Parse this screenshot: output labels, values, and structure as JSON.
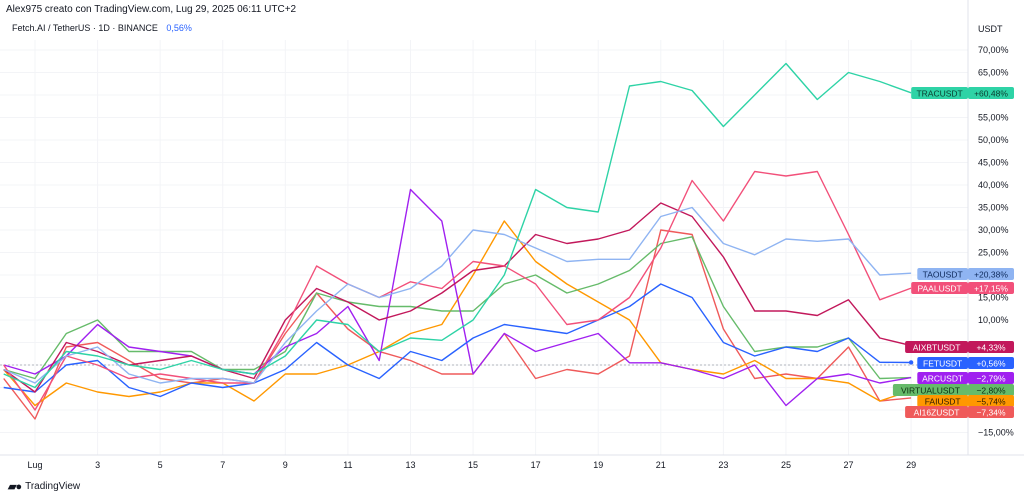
{
  "header": {
    "attribution": "Alex975 creato con TradingView.com, Lug 29, 2025 06:11 UTC+2",
    "symbol": "Fetch.AI / TetherUS · 1D · BINANCE",
    "change": "0,56%"
  },
  "footer": {
    "brand": "TradingView",
    "logo": "17"
  },
  "chart_data": {
    "type": "line",
    "title": "Fetch.AI / TetherUS · 1D · BINANCE",
    "ylabel": "USDT",
    "ylim": [
      -20,
      75
    ],
    "y_ticks": [
      -15,
      10,
      15,
      20,
      25,
      30,
      35,
      40,
      45,
      50,
      55,
      65,
      70
    ],
    "y_tick_labels": [
      "−15,00%",
      "10,00%",
      "15,00%",
      "",
      "25,00%",
      "30,00%",
      "35,00%",
      "40,00%",
      "45,00%",
      "50,00%",
      "55,00%",
      "65,00%",
      "70,00%"
    ],
    "x_days": [
      0,
      1,
      2,
      3,
      4,
      5,
      6,
      7,
      8,
      9,
      10,
      11,
      12,
      13,
      14,
      15,
      16,
      17,
      18,
      19,
      20,
      21,
      22,
      23,
      24,
      25,
      26,
      27,
      28,
      29
    ],
    "x_ticks": [
      1,
      3,
      5,
      7,
      9,
      11,
      13,
      15,
      17,
      19,
      21,
      23,
      25,
      27,
      29
    ],
    "x_tick_labels": [
      "Lug",
      "3",
      "5",
      "7",
      "9",
      "11",
      "13",
      "15",
      "17",
      "19",
      "21",
      "23",
      "25",
      "27",
      "29"
    ],
    "grid": true,
    "series": [
      {
        "name": "TRACUSDT",
        "last": "+60,48%",
        "color": "#2ed3a6",
        "text": "#0b3d30",
        "values": [
          -2,
          -5,
          3,
          2,
          0,
          -1,
          1,
          -1,
          -2,
          2,
          10,
          9,
          3,
          6,
          5.5,
          10,
          20,
          39,
          35,
          34,
          62,
          63,
          61,
          53,
          60,
          67,
          59,
          65,
          63,
          60.5
        ]
      },
      {
        "name": "TAOUSDT",
        "last": "+20,38%",
        "color": "#8fb4f2",
        "text": "#0e2a5c",
        "values": [
          -1,
          -4,
          2,
          4,
          -2,
          -4,
          -3,
          -3,
          -4,
          5,
          12,
          18,
          15,
          17,
          22,
          30,
          29,
          26,
          23,
          23.5,
          23.5,
          33,
          35,
          27,
          24.5,
          28,
          27.5,
          28,
          20,
          20.4
        ]
      },
      {
        "name": "PAALUSDT",
        "last": "+17,15%",
        "color": "#f2507a",
        "text": "#ffffff",
        "values": [
          0,
          -10,
          2,
          0,
          -3,
          -2,
          -3,
          -4,
          -4,
          8,
          22,
          18,
          15,
          18.5,
          17,
          23,
          22,
          18,
          9,
          10,
          15,
          26,
          41,
          32,
          43,
          42,
          43,
          29,
          14.5,
          17.1
        ]
      },
      {
        "name": "AIXBTUSDT",
        "last": "+4,33%",
        "color": "#c2185b",
        "text": "#ffffff",
        "values": [
          -1,
          -6,
          5,
          3,
          0,
          1,
          2,
          -1,
          -3,
          10,
          17,
          14,
          10,
          12,
          16,
          21,
          22,
          29,
          27,
          28,
          30,
          36,
          33,
          24,
          12,
          12,
          11,
          14.5,
          6,
          4.3
        ]
      },
      {
        "name": "FETUSDT",
        "last": "+0,56%",
        "color": "#2962ff",
        "text": "#ffffff",
        "values": [
          -5,
          -6,
          0,
          1,
          -5,
          -7,
          -4,
          -5,
          -4,
          -1,
          5,
          0,
          -3,
          3,
          1,
          6,
          9,
          8,
          7,
          10,
          13,
          18,
          15,
          5,
          2,
          4,
          3,
          6,
          0.6,
          0.56
        ]
      },
      {
        "name": "ARCUSDT",
        "last": "−2,79%",
        "color": "#a020f0",
        "text": "#ffffff",
        "values": [
          0,
          -2,
          2,
          9,
          4,
          3,
          2,
          -1,
          -2,
          4,
          7,
          13,
          1,
          39,
          32,
          -2,
          7,
          3,
          5,
          7,
          0.5,
          0.5,
          -1,
          -3,
          0,
          -9,
          -3,
          -2,
          -4,
          -2.8
        ]
      },
      {
        "name": "VIRTUALUSDT",
        "last": "−2,80%",
        "color": "#66bb6a",
        "text": "#0d2e10",
        "values": [
          -1,
          -3,
          7,
          10,
          3,
          3,
          3,
          -1,
          -1,
          3,
          16,
          14,
          13,
          13,
          12,
          12,
          18,
          20,
          16,
          18,
          21,
          27,
          28.5,
          13,
          3,
          4,
          4,
          6,
          -3,
          -2.8
        ]
      },
      {
        "name": "FAIUSDT",
        "last": "−5,74%",
        "color": "#ff9800",
        "text": "#2b1a00",
        "values": [
          -1,
          -9,
          -4,
          -6,
          -7,
          -6,
          -4,
          -4,
          -8,
          -2,
          -2,
          0,
          3,
          7,
          9,
          20,
          32,
          23,
          18,
          14,
          10,
          0.5,
          -1,
          -2,
          1,
          -3,
          -3,
          -4,
          -8,
          -5.7
        ]
      },
      {
        "name": "AI16ZUSDT",
        "last": "−7,34%",
        "color": "#ef5a5a",
        "text": "#ffffff",
        "values": [
          -3,
          -12,
          4,
          5,
          1,
          -3,
          -4,
          -3,
          -4,
          7,
          16,
          8,
          3,
          1,
          -2,
          -2,
          7,
          -3,
          -1,
          -2,
          2,
          30,
          29,
          8,
          -3,
          -2,
          -3,
          4,
          -8,
          -7.3
        ]
      }
    ]
  }
}
